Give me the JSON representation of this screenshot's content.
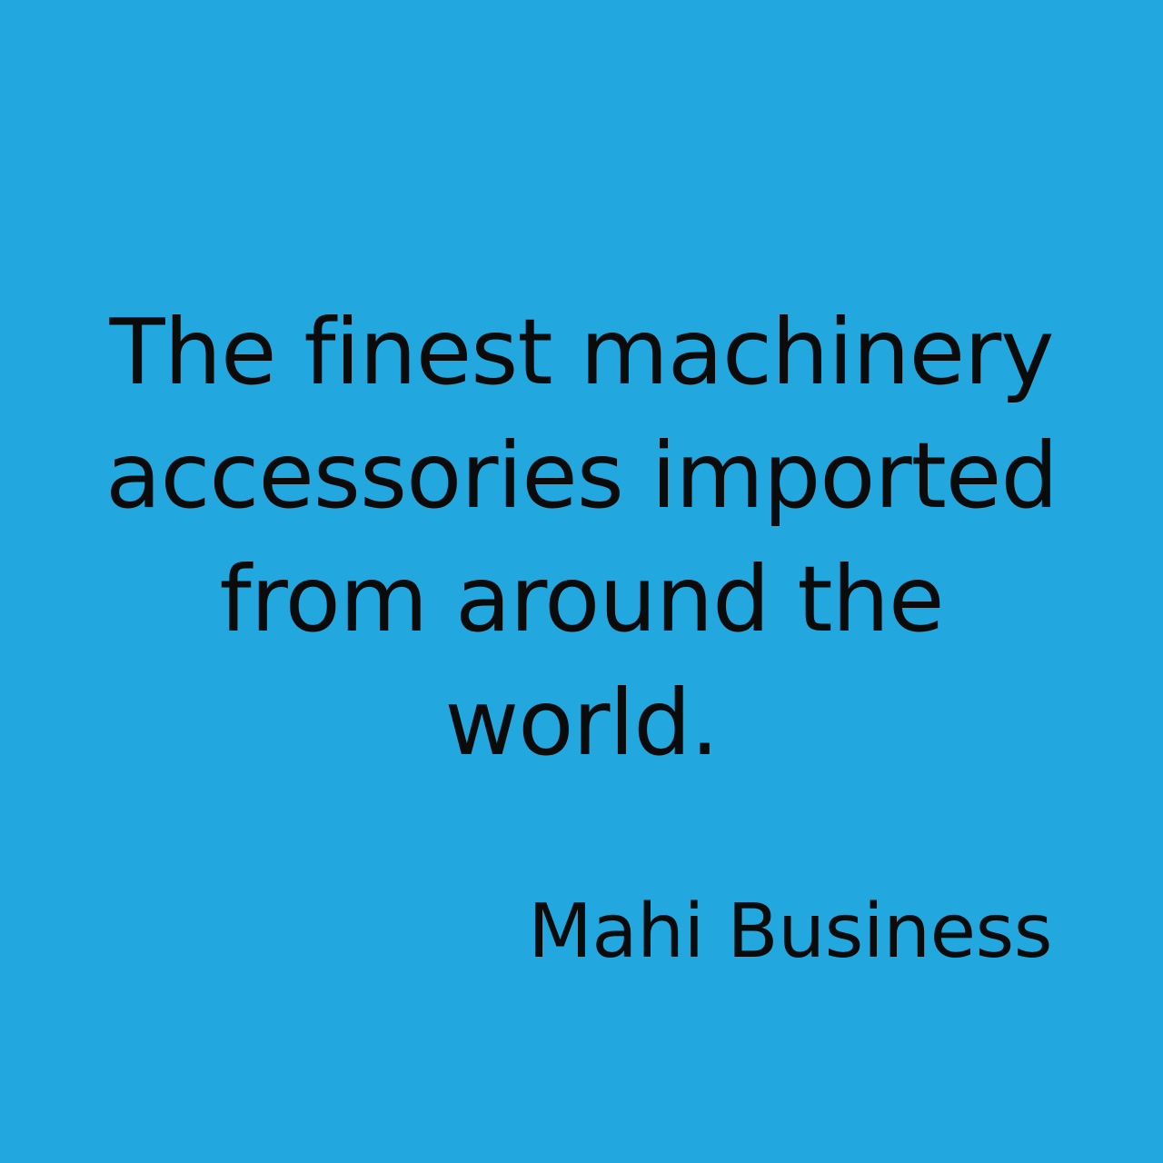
{
  "colors": {
    "background": "#22a7df",
    "text": "#0b0b0b"
  },
  "quote": {
    "lines": [
      "The finest machinery",
      "accessories imported",
      "from around the",
      "world."
    ]
  },
  "author": "Mahi Business"
}
